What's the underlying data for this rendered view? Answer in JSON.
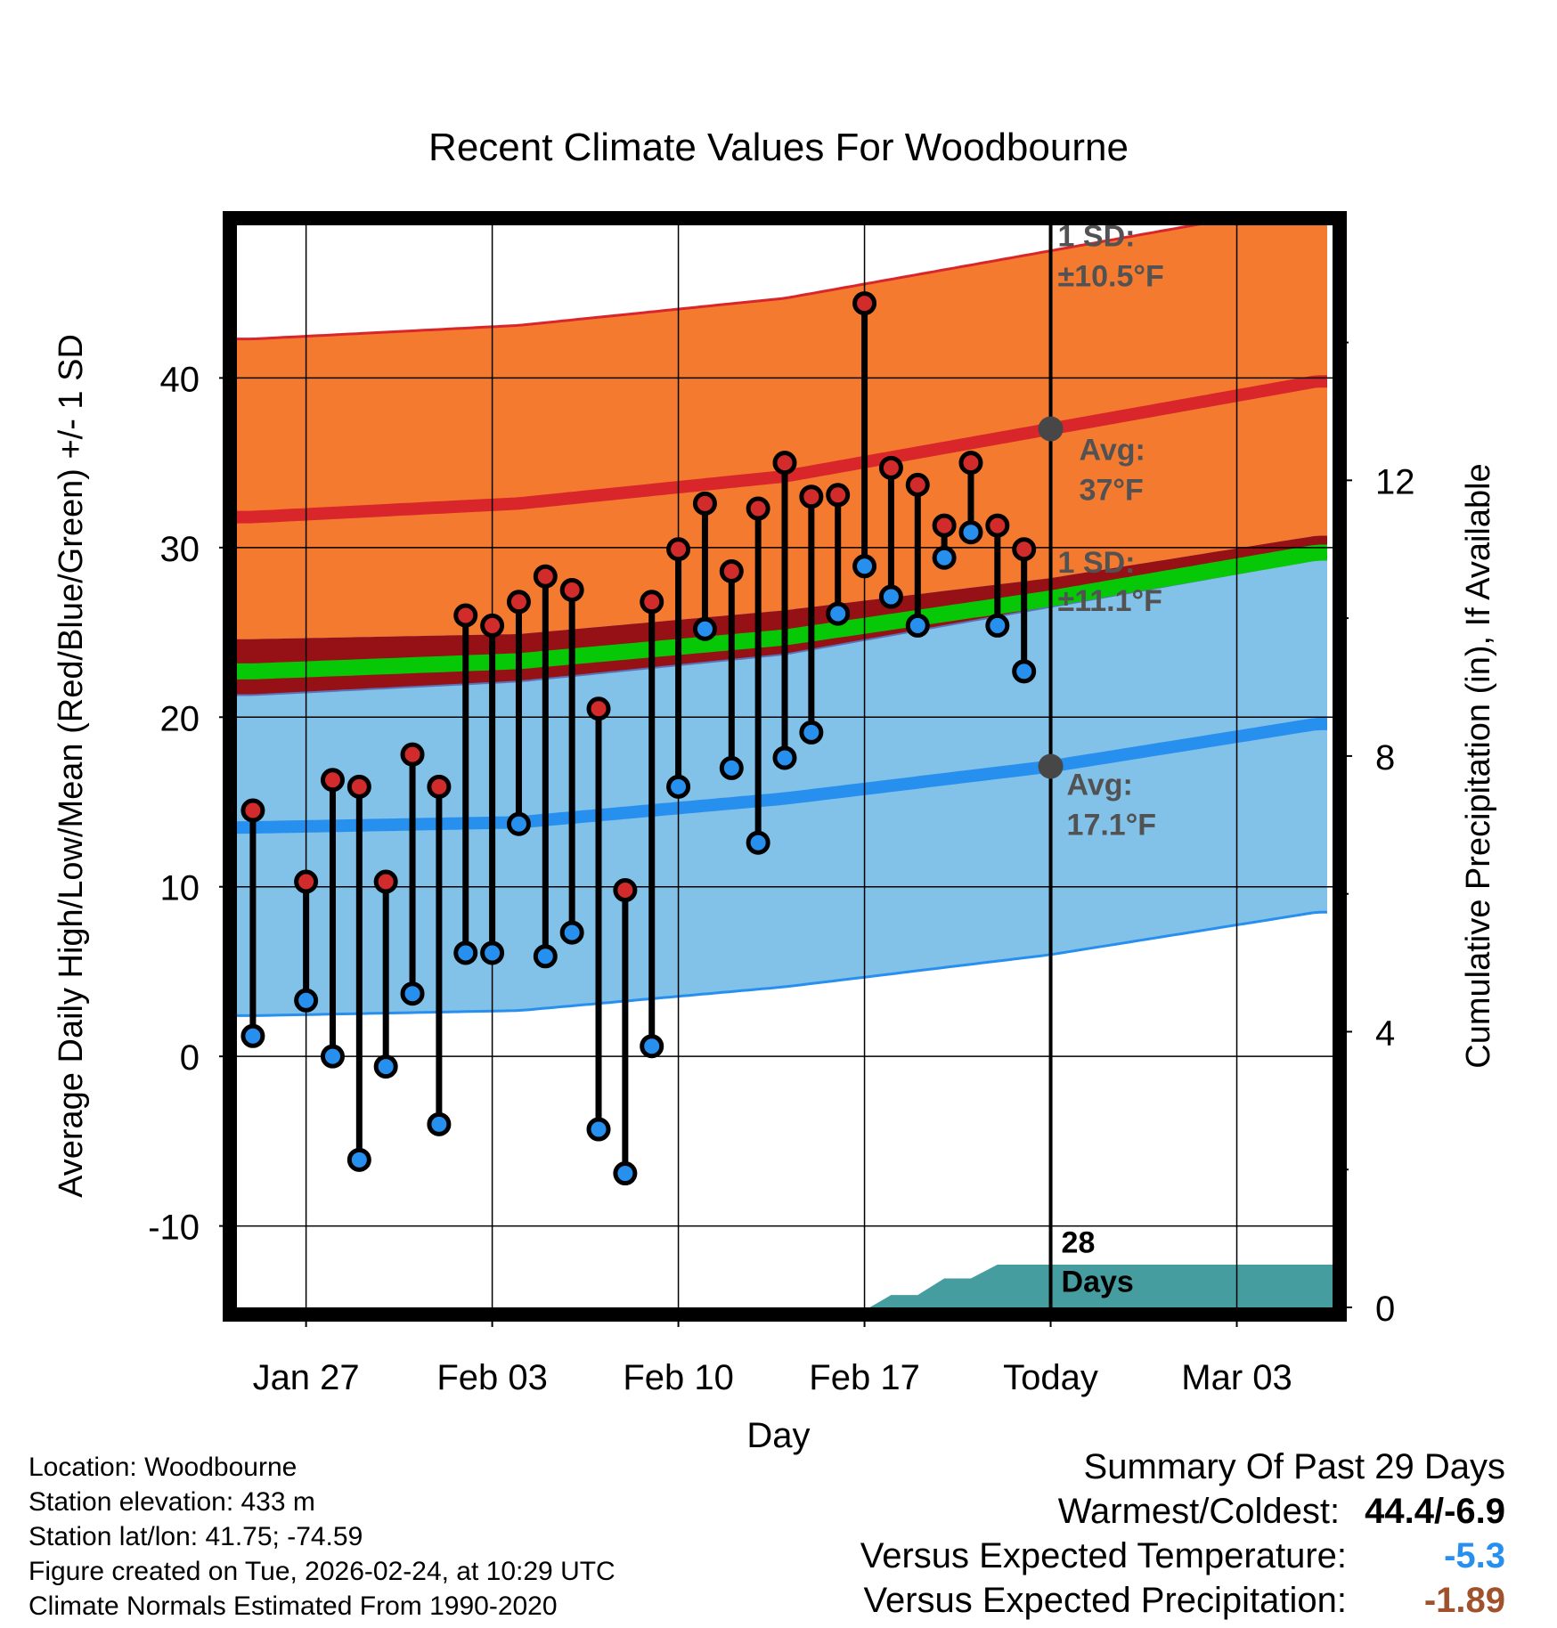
{
  "chart_data": {
    "type": "line",
    "title": "Recent Climate Values For Woodbourne",
    "xlabel": "Day",
    "ylabel": "Average Daily High/Low/Mean (Red/Blue/Green) +/- 1 SD",
    "y2label": "Cumulative Precipitation (in), If Available",
    "x_tick_labels": [
      {
        "day": 2,
        "label": "Jan 27"
      },
      {
        "day": 9,
        "label": "Feb 03"
      },
      {
        "day": 16,
        "label": "Feb 10"
      },
      {
        "day": 23,
        "label": "Feb 17"
      },
      {
        "day": 30,
        "label": "Today"
      },
      {
        "day": 37,
        "label": "Mar 03"
      }
    ],
    "xlim": [
      -0.6,
      40.6
    ],
    "ylim": [
      -14.8,
      49
    ],
    "y_ticks": [
      -10,
      0,
      10,
      20,
      30,
      40
    ],
    "y2lim": [
      0,
      15.7
    ],
    "y2_ticks": [
      0,
      4,
      8,
      12
    ],
    "today_day": 30,
    "normal_high_avg": {
      "days": [
        0,
        10,
        20,
        30,
        40
      ],
      "values": [
        31.8,
        32.6,
        34.2,
        37.0,
        39.8
      ]
    },
    "normal_high_sd": 10.5,
    "normal_low_avg": {
      "days": [
        0,
        10,
        20,
        30,
        40
      ],
      "values": [
        13.5,
        13.8,
        15.2,
        17.1,
        19.6
      ]
    },
    "normal_low_sd": 11.1,
    "normal_mean": {
      "days": [
        0,
        10,
        20,
        30,
        40
      ],
      "values": [
        22.7,
        23.3,
        24.7,
        27.0,
        29.7
      ]
    },
    "daily_obs": [
      {
        "day": 0,
        "high": 14.5,
        "low": 1.2
      },
      {
        "day": 2,
        "high": 10.3,
        "low": 3.3
      },
      {
        "day": 3,
        "high": 16.3,
        "low": 0.0
      },
      {
        "day": 4,
        "high": 15.9,
        "low": -6.1
      },
      {
        "day": 5,
        "high": 10.3,
        "low": -0.6
      },
      {
        "day": 6,
        "high": 17.8,
        "low": 3.7
      },
      {
        "day": 7,
        "high": 15.9,
        "low": -4.0
      },
      {
        "day": 8,
        "high": 26.0,
        "low": 6.1
      },
      {
        "day": 9,
        "high": 25.4,
        "low": 6.1
      },
      {
        "day": 10,
        "high": 26.8,
        "low": 13.7
      },
      {
        "day": 11,
        "high": 28.3,
        "low": 5.9
      },
      {
        "day": 12,
        "high": 27.5,
        "low": 7.3
      },
      {
        "day": 13,
        "high": 20.5,
        "low": -4.3
      },
      {
        "day": 14,
        "high": 9.8,
        "low": -6.9
      },
      {
        "day": 15,
        "high": 26.8,
        "low": 0.6
      },
      {
        "day": 16,
        "high": 29.9,
        "low": 15.9
      },
      {
        "day": 17,
        "high": 32.6,
        "low": 25.2
      },
      {
        "day": 18,
        "high": 28.6,
        "low": 17.0
      },
      {
        "day": 19,
        "high": 32.3,
        "low": 12.6
      },
      {
        "day": 20,
        "high": 35.0,
        "low": 17.6
      },
      {
        "day": 21,
        "high": 33.0,
        "low": 19.1
      },
      {
        "day": 22,
        "high": 33.1,
        "low": 26.1
      },
      {
        "day": 23,
        "high": 44.4,
        "low": 28.9
      },
      {
        "day": 24,
        "high": 34.7,
        "low": 27.1
      },
      {
        "day": 25,
        "high": 33.7,
        "low": 25.4
      },
      {
        "day": 26,
        "high": 31.3,
        "low": 29.4
      },
      {
        "day": 27,
        "high": 35.0,
        "low": 30.9
      },
      {
        "day": 28,
        "high": 31.3,
        "low": 25.4
      },
      {
        "day": 29,
        "high": 29.9,
        "low": 22.7
      }
    ],
    "cumulative_precip": {
      "days": [
        23.2,
        24,
        25,
        26,
        27,
        28,
        29,
        30,
        40.6
      ],
      "values": [
        0.0,
        0.18,
        0.18,
        0.42,
        0.42,
        0.62,
        0.62,
        0.62,
        0.62
      ]
    },
    "annotations": {
      "high_sd_line1": "1 SD:",
      "high_sd_line2": "±10.5°F",
      "high_avg_line1": "Avg:",
      "high_avg_line2": "37°F",
      "low_sd_line1": "1 SD:",
      "low_sd_line2": "±11.1°F",
      "low_avg_line1": "Avg:",
      "low_avg_line2": "17.1°F",
      "days_line1": "28",
      "days_line2": "Days"
    },
    "colors": {
      "high_band": "#f47a30",
      "high_line": "#d9262a",
      "low_band": "#82c1e8",
      "low_line": "#2790ee",
      "mean_line": "#07c807",
      "overlap": "#951116",
      "precip": "#459da0",
      "high_dot": "#d22b2b",
      "low_dot": "#2790ee",
      "annotation": "#525252"
    }
  },
  "info": {
    "location": "Location: Woodbourne",
    "elevation": "Station elevation: 433 m",
    "latlon": "Station lat/lon: 41.75; -74.59",
    "created": "Figure created on Tue, 2026-02-24, at 10:29 UTC",
    "normals": "Climate Normals Estimated From 1990-2020"
  },
  "summary": {
    "title": "Summary Of Past 29 Days",
    "warmest_label": "Warmest/Coldest:",
    "warmest_value": "44.4/-6.9",
    "temp_label": "Versus Expected Temperature:",
    "temp_value": "-5.3",
    "temp_color": "#2790ee",
    "precip_label": "Versus Expected Precipitation:",
    "precip_value": "-1.89",
    "precip_color": "#a0522d"
  }
}
